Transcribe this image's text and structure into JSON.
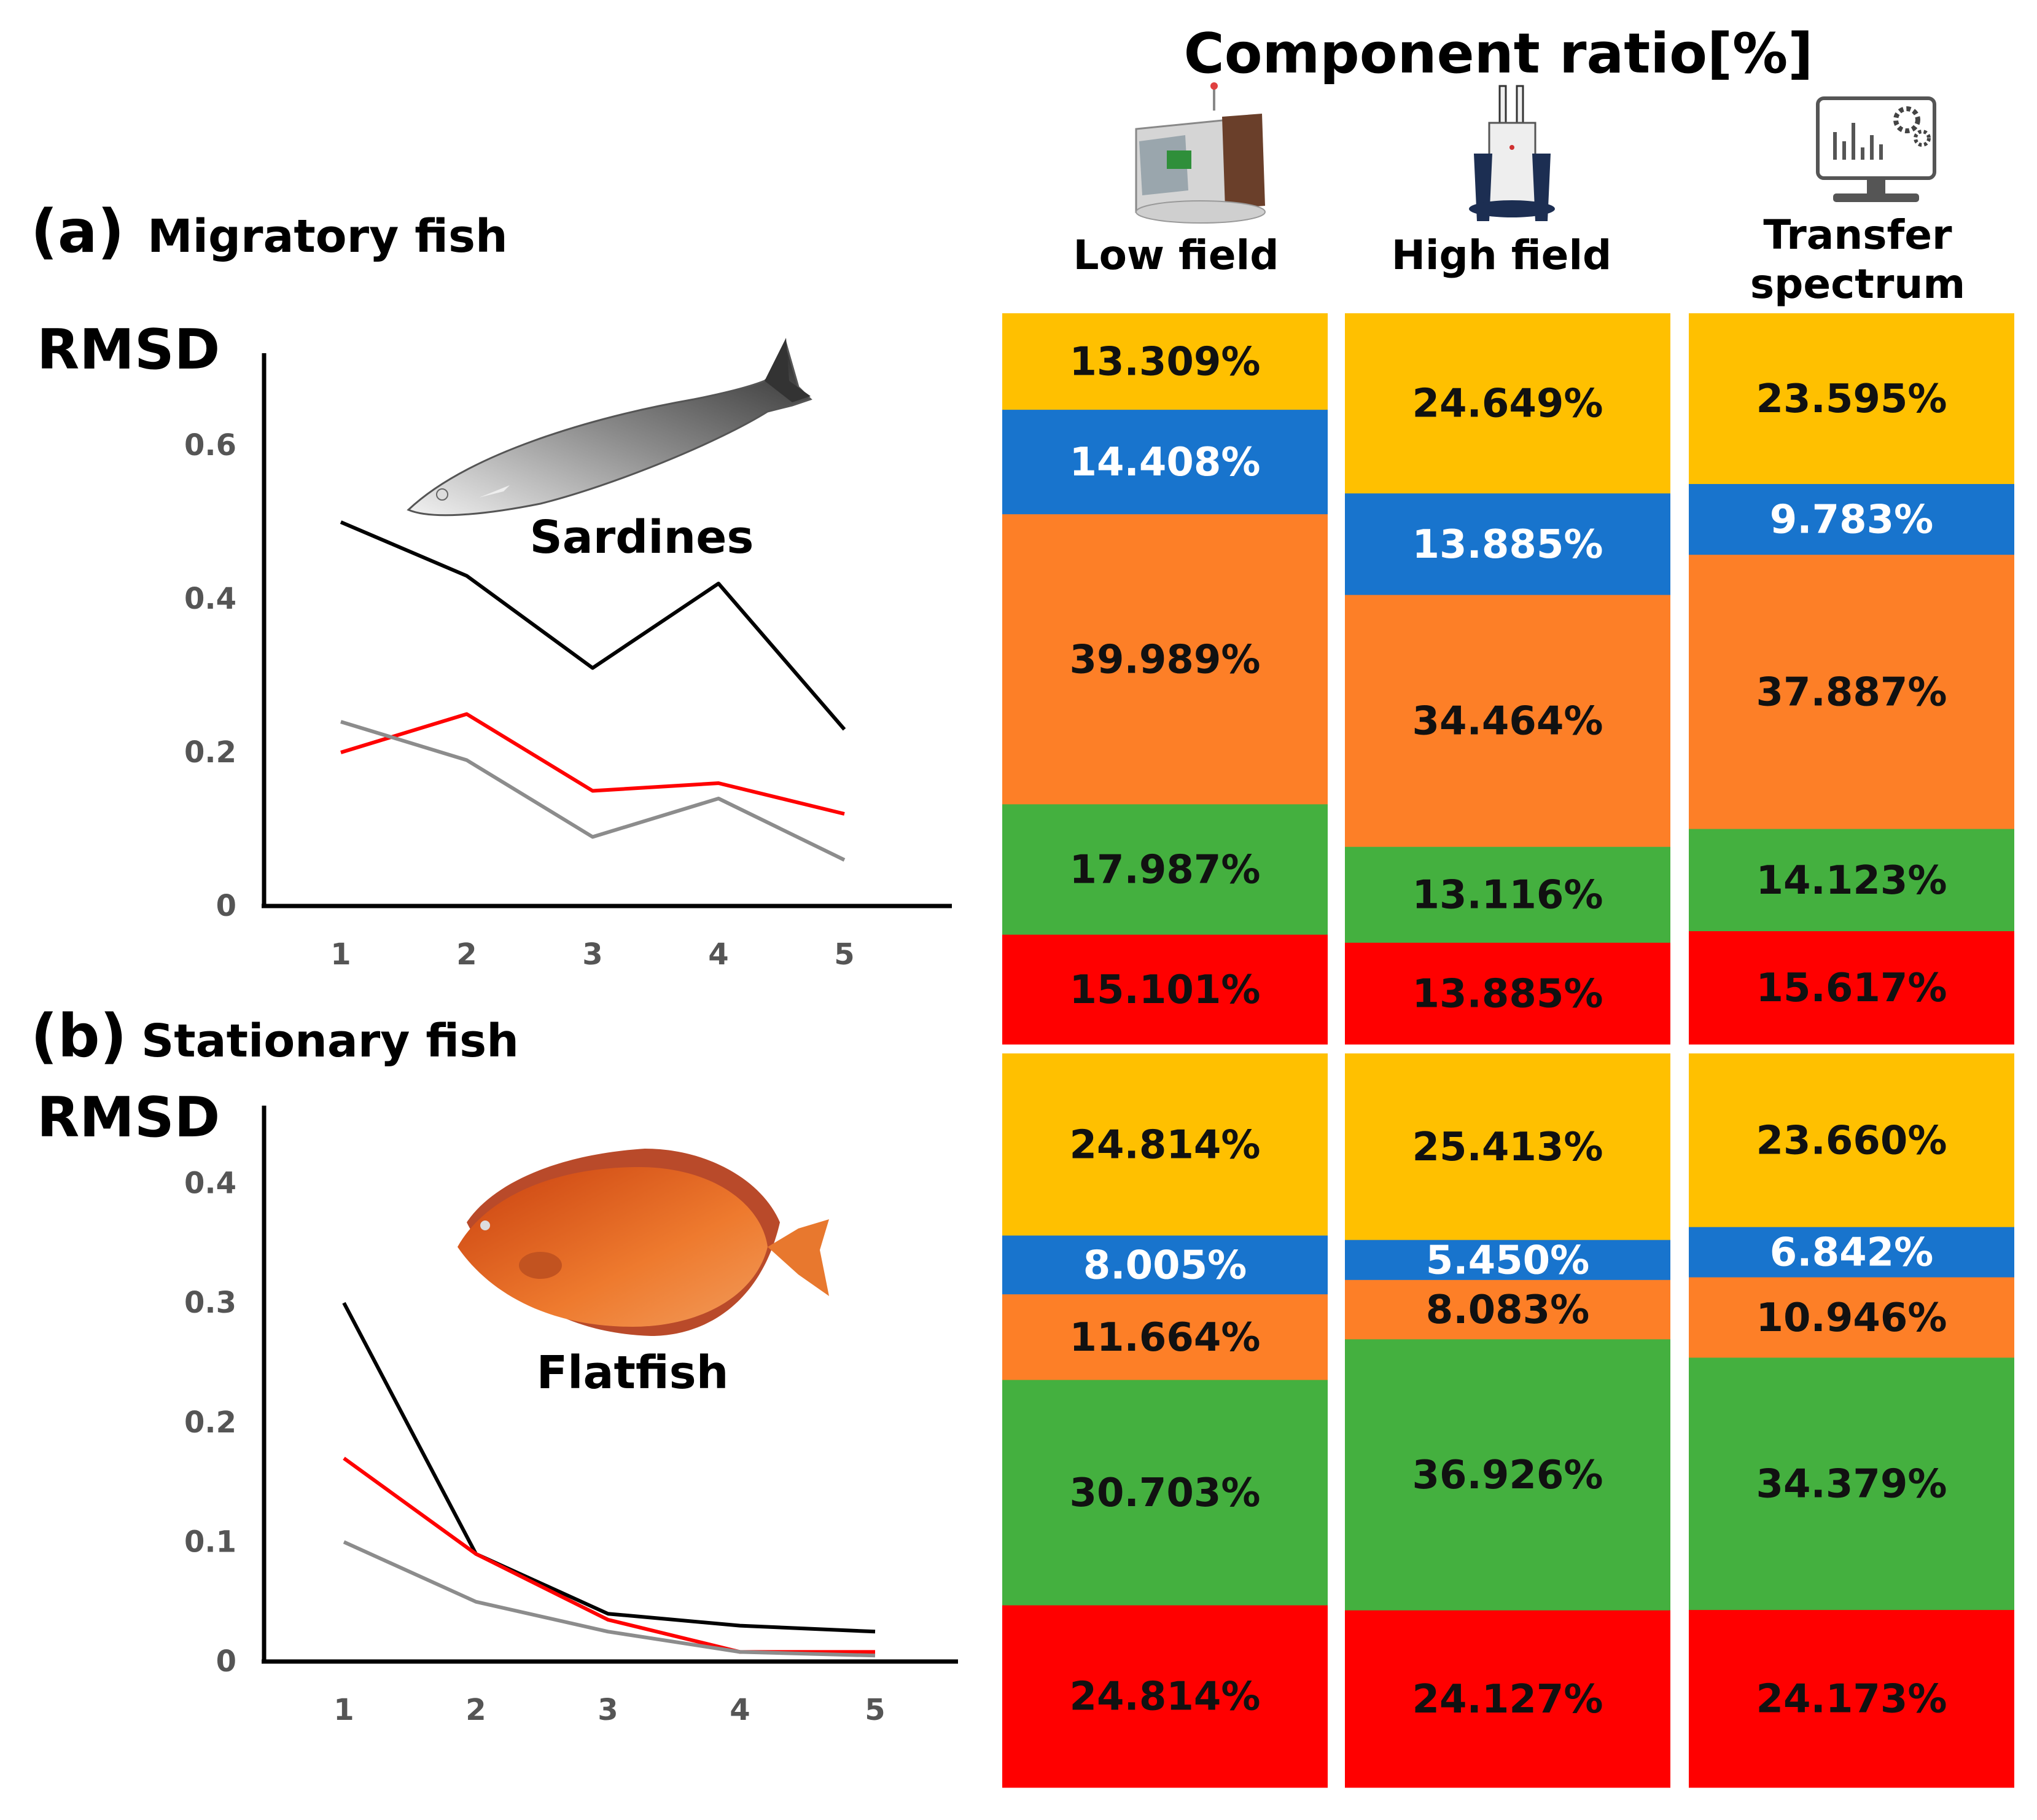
{
  "title": "Component ratio[%]",
  "chart_data": [
    {
      "type": "line",
      "panel_label": "(a)",
      "panel_title": "Migratory fish",
      "ylabel": "RMSD",
      "fish_name": "Sardines",
      "x": [
        1,
        2,
        3,
        4,
        5
      ],
      "xticks": [
        "1",
        "2",
        "3",
        "4",
        "5"
      ],
      "yticks": [
        "0",
        "0.2",
        "0.4",
        "0.6"
      ],
      "ylim": [
        0,
        0.72
      ],
      "series": [
        {
          "name": "black",
          "color": "#000000",
          "values": [
            0.5,
            0.43,
            0.31,
            0.42,
            0.23
          ]
        },
        {
          "name": "red",
          "color": "#ff0000",
          "values": [
            0.2,
            0.25,
            0.15,
            0.16,
            0.12
          ]
        },
        {
          "name": "gray",
          "color": "#8c8c8c",
          "values": [
            0.24,
            0.19,
            0.09,
            0.14,
            0.06
          ]
        }
      ]
    },
    {
      "type": "line",
      "panel_label": "(b)",
      "panel_title": "Stationary fish",
      "ylabel": "RMSD",
      "fish_name": "Flatfish",
      "x": [
        1,
        2,
        3,
        4,
        5
      ],
      "xticks": [
        "1",
        "2",
        "3",
        "4",
        "5"
      ],
      "yticks": [
        "0",
        "0.1",
        "0.2",
        "0.3",
        "0.4"
      ],
      "ylim": [
        0,
        0.465
      ],
      "series": [
        {
          "name": "black",
          "color": "#000000",
          "values": [
            0.3,
            0.09,
            0.04,
            0.03,
            0.025
          ]
        },
        {
          "name": "red",
          "color": "#ff0000",
          "values": [
            0.17,
            0.09,
            0.035,
            0.008,
            0.008
          ]
        },
        {
          "name": "gray",
          "color": "#8c8c8c",
          "values": [
            0.1,
            0.05,
            0.025,
            0.008,
            0.005
          ]
        }
      ]
    },
    {
      "type": "bar",
      "stacked": true,
      "title": "Component ratio[%]",
      "columns": [
        "Low field",
        "High field",
        "Transfer spectrum"
      ],
      "groups": [
        {
          "name": "(a) Migratory fish",
          "stacks": [
            {
              "column": "Low field",
              "segments": [
                {
                  "color": "yellow",
                  "value": 13.309,
                  "label": "13.309%"
                },
                {
                  "color": "blue",
                  "value": 14.408,
                  "label": "14.408%"
                },
                {
                  "color": "orange",
                  "value": 39.989,
                  "label": "39.989%"
                },
                {
                  "color": "green",
                  "value": 17.987,
                  "label": "17.987%"
                },
                {
                  "color": "red",
                  "value": 15.101,
                  "label": "15.101%"
                }
              ]
            },
            {
              "column": "High field",
              "segments": [
                {
                  "color": "yellow",
                  "value": 24.649,
                  "label": "24.649%"
                },
                {
                  "color": "blue",
                  "value": 13.885,
                  "label": "13.885%"
                },
                {
                  "color": "orange",
                  "value": 34.464,
                  "label": "34.464%"
                },
                {
                  "color": "green",
                  "value": 13.116,
                  "label": "13.116%"
                },
                {
                  "color": "red",
                  "value": 13.885,
                  "label": "13.885%"
                }
              ]
            },
            {
              "column": "Transfer spectrum",
              "segments": [
                {
                  "color": "yellow",
                  "value": 23.595,
                  "label": "23.595%"
                },
                {
                  "color": "blue",
                  "value": 9.783,
                  "label": "9.783%"
                },
                {
                  "color": "orange",
                  "value": 37.887,
                  "label": "37.887%"
                },
                {
                  "color": "green",
                  "value": 14.123,
                  "label": "14.123%"
                },
                {
                  "color": "red",
                  "value": 15.617,
                  "label": "15.617%"
                }
              ]
            }
          ]
        },
        {
          "name": "(b) Stationary fish",
          "stacks": [
            {
              "column": "Low field",
              "segments": [
                {
                  "color": "yellow",
                  "value": 24.814,
                  "label": "24.814%"
                },
                {
                  "color": "blue",
                  "value": 8.005,
                  "label": "8.005%"
                },
                {
                  "color": "orange",
                  "value": 11.664,
                  "label": "11.664%"
                },
                {
                  "color": "green",
                  "value": 30.703,
                  "label": "30.703%"
                },
                {
                  "color": "red",
                  "value": 24.814,
                  "label": "24.814%"
                }
              ]
            },
            {
              "column": "High field",
              "segments": [
                {
                  "color": "yellow",
                  "value": 25.413,
                  "label": "25.413%"
                },
                {
                  "color": "blue",
                  "value": 5.45,
                  "label": "5.450%"
                },
                {
                  "color": "orange",
                  "value": 8.083,
                  "label": "8.083%"
                },
                {
                  "color": "green",
                  "value": 36.926,
                  "label": "36.926%"
                },
                {
                  "color": "red",
                  "value": 24.127,
                  "label": "24.127%"
                }
              ]
            },
            {
              "column": "Transfer spectrum",
              "segments": [
                {
                  "color": "yellow",
                  "value": 23.66,
                  "label": "23.660%"
                },
                {
                  "color": "blue",
                  "value": 6.842,
                  "label": "6.842%"
                },
                {
                  "color": "orange",
                  "value": 10.946,
                  "label": "10.946%"
                },
                {
                  "color": "green",
                  "value": 34.379,
                  "label": "34.379%"
                },
                {
                  "color": "red",
                  "value": 24.173,
                  "label": "24.173%"
                }
              ]
            }
          ]
        }
      ]
    }
  ],
  "colors": {
    "yellow": "#ffc000",
    "blue": "#1874cd",
    "orange": "#fd7f27",
    "green": "#44b03f",
    "red": "#ff0000"
  }
}
